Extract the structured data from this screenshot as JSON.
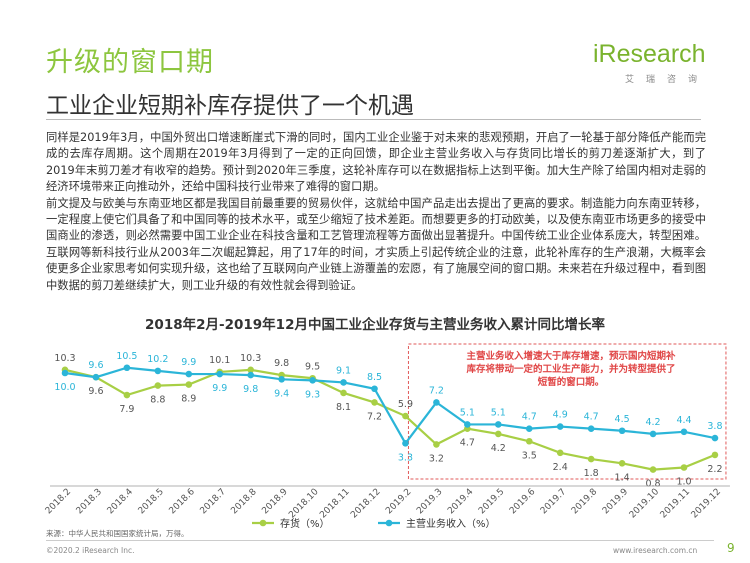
{
  "header": {
    "title": "升级的窗口期",
    "subtitle": "工业企业短期补库存提供了一个机遇"
  },
  "logo": {
    "word": "iResearch",
    "sub": "艾瑞咨询"
  },
  "body": {
    "paragraphs": [
      "同样是2019年3月，中国外贸出口增速断崖式下滑的同时，国内工业企业鉴于对未来的悲观预期，开启了一轮基于部分降低产能而完成的去库存周期。这个周期在2019年3月得到了一定的正向回馈，即企业主营业务收入与存货同比增长的剪刀差逐渐扩大，到了2019年末剪刀差才有收窄的趋势。预计到2020年三季度，这轮补库存可以在数据指标上达到平衡。加大生产除了给国内相对走弱的经济环境带来正向推动外，还给中国科技行业带来了难得的窗口期。",
      "前文提及与欧美与东南亚地区都是我国目前最重要的贸易伙伴，这就给中国产品走出去提出了更高的要求。制造能力向东南亚转移，一定程度上使它们具备了和中国同等的技术水平，或至少缩短了技术差距。而想要更多的打动欧美，以及使东南亚市场更多的接受中国商业的渗透，则必然需要中国工业企业在科技含量和工艺管理流程等方面做出显著提升。中国传统工业企业体系庞大，转型困难。互联网等新科技行业从2003年二次崛起算起，用了17年的时间，才实质上引起传统企业的注意，此轮补库存的生产浪潮，大概率会使更多企业家思考如何实现升级，这也给了互联网向产业链上游覆盖的宏愿，有了施展空间的窗口期。未来若在升级过程中，看到图中数据的剪刀差继续扩大，则工业升级的有效性就会得到验证。"
    ]
  },
  "chart_data": {
    "type": "line",
    "title": "2018年2月-2019年12月中国工业企业存货与主营业务收入累计同比增长率",
    "categories": [
      "2018.2",
      "2018.3",
      "2018.4",
      "2018.5",
      "2018.6",
      "2018.7",
      "2018.8",
      "2018.9",
      "2018.10",
      "2018.11",
      "2018.12",
      "2019.2",
      "2019.3",
      "2019.4",
      "2019.5",
      "2019.6",
      "2019.7",
      "2019.8",
      "2019.9",
      "2019.10",
      "2019.11",
      "2019.12"
    ],
    "series": [
      {
        "name": "存货（%）",
        "color": "#a8cf45",
        "values": [
          10.3,
          9.6,
          7.9,
          8.8,
          8.9,
          10.1,
          10.3,
          9.8,
          9.5,
          8.1,
          7.2,
          5.9,
          3.2,
          4.7,
          4.2,
          3.5,
          2.4,
          1.8,
          1.4,
          0.8,
          1.0,
          2.2
        ]
      },
      {
        "name": "主营业务收入（%）",
        "color": "#2bb5d8",
        "values": [
          10.0,
          9.6,
          10.5,
          10.2,
          9.9,
          9.9,
          9.8,
          9.4,
          9.3,
          9.1,
          8.5,
          3.3,
          7.2,
          5.1,
          5.1,
          4.7,
          4.9,
          4.7,
          4.5,
          4.2,
          4.4,
          3.8
        ]
      }
    ],
    "ylim": [
      0,
      12
    ],
    "annotation": "主营业务收入增速大于库存增速，预示国内短期补库存将带动一定的工业生产能力，并为转型提供了短暂的窗口期。",
    "legend_position": "bottom"
  },
  "source": "来源：中华人民共和国国家统计局，万得。",
  "footer": {
    "copyright": "©2020.2 iResearch Inc.",
    "url": "www.iresearch.com.cn",
    "page": "9"
  }
}
